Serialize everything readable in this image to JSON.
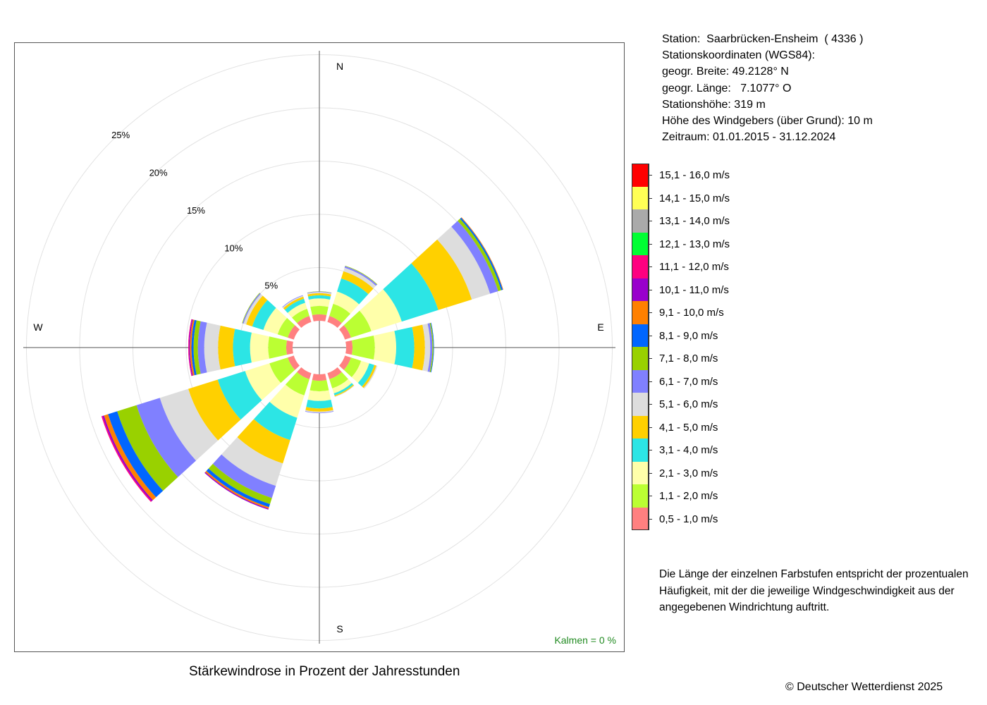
{
  "chart_data": {
    "type": "wind-rose",
    "title": "Stärkewindrose in Prozent der Jahresstunden",
    "calm_label": "Kalmen  =  0 %",
    "compass": {
      "n": "N",
      "e": "E",
      "s": "S",
      "w": "W"
    },
    "radial_ticks": [
      {
        "value": 5,
        "label": "5%"
      },
      {
        "value": 10,
        "label": "10%"
      },
      {
        "value": 15,
        "label": "15%"
      },
      {
        "value": 20,
        "label": "20%"
      },
      {
        "value": 25,
        "label": "25%"
      }
    ],
    "directions_deg": [
      0,
      30,
      60,
      90,
      120,
      150,
      180,
      210,
      240,
      270,
      300,
      330
    ],
    "speed_classes": [
      {
        "label": "0,5 - 1,0 m/s",
        "color": "#FF8080"
      },
      {
        "label": "1,1 - 2,0 m/s",
        "color": "#BBFF33"
      },
      {
        "label": "2,1 - 3,0 m/s",
        "color": "#FFFFAA"
      },
      {
        "label": "3,1 - 4,0 m/s",
        "color": "#2CE5E5"
      },
      {
        "label": "4,1 - 5,0 m/s",
        "color": "#FFD000"
      },
      {
        "label": "5,1 - 6,0 m/s",
        "color": "#DDDDDD"
      },
      {
        "label": "6,1 - 7,0 m/s",
        "color": "#8080FF"
      },
      {
        "label": "7,1 - 8,0 m/s",
        "color": "#99D100"
      },
      {
        "label": "8,1 - 9,0 m/s",
        "color": "#0066FF"
      },
      {
        "label": "9,1 - 10,0 m/s",
        "color": "#FF8000"
      },
      {
        "label": "10,1 - 11,0 m/s",
        "color": "#9900CC"
      },
      {
        "label": "11,1 - 12,0 m/s",
        "color": "#FF0080"
      },
      {
        "label": "12,1 - 13,0 m/s",
        "color": "#00FF33"
      },
      {
        "label": "13,1 - 14,0 m/s",
        "color": "#AAAAAA"
      },
      {
        "label": "14,1 - 15,0 m/s",
        "color": "#FFFF55"
      },
      {
        "label": "15,1 - 16,0 m/s",
        "color": "#FF0000"
      }
    ],
    "frequencies_percent": [
      {
        "direction": 0,
        "classes": [
          0.6,
          0.8,
          0.7,
          0.3,
          0.2,
          0.1,
          0.05,
          0.02
        ]
      },
      {
        "direction": 30,
        "classes": [
          0.6,
          1.2,
          1.2,
          1.3,
          0.7,
          0.35,
          0.15,
          0.05
        ]
      },
      {
        "direction": 60,
        "classes": [
          0.6,
          2.0,
          3.0,
          3.6,
          3.3,
          1.8,
          0.8,
          0.3,
          0.15,
          0.05
        ]
      },
      {
        "direction": 90,
        "classes": [
          0.6,
          2.1,
          2.0,
          1.7,
          1.0,
          0.5,
          0.2,
          0.1,
          0.05
        ]
      },
      {
        "direction": 120,
        "classes": [
          0.6,
          1.0,
          0.8,
          0.5,
          0.2,
          0.1
        ]
      },
      {
        "direction": 150,
        "classes": [
          0.6,
          0.9,
          0.5,
          0.2,
          0.1,
          0.05
        ]
      },
      {
        "direction": 180,
        "classes": [
          0.6,
          1.0,
          0.9,
          0.7,
          0.3,
          0.1,
          0.05
        ]
      },
      {
        "direction": 210,
        "classes": [
          0.6,
          1.6,
          2.2,
          2.2,
          2.3,
          2.2,
          1.2,
          0.6,
          0.3,
          0.15,
          0.1
        ]
      },
      {
        "direction": 240,
        "classes": [
          0.6,
          1.8,
          2.4,
          2.7,
          2.9,
          2.8,
          2.3,
          1.9,
          0.9,
          0.4,
          0.15,
          0.1
        ]
      },
      {
        "direction": 270,
        "classes": [
          0.6,
          1.7,
          1.7,
          1.6,
          1.4,
          1.3,
          0.6,
          0.4,
          0.2,
          0.15,
          0.1,
          0.05
        ]
      },
      {
        "direction": 300,
        "classes": [
          0.6,
          1.0,
          1.4,
          1.1,
          0.6,
          0.25,
          0.1,
          0.05
        ]
      },
      {
        "direction": 330,
        "classes": [
          0.6,
          0.7,
          0.6,
          0.4,
          0.2,
          0.1,
          0.05
        ]
      }
    ]
  },
  "station": {
    "line1": "Station:  Saarbrücken-Ensheim  ( 4336 )",
    "line2": "Stationskoordinaten (WGS84):",
    "line3": "geogr. Breite: 49.2128° N",
    "line4": "geogr. Länge:   7.1077° O",
    "line5": "Stationshöhe: 319 m",
    "line6": "Höhe des Windgebers (über Grund): 10 m",
    "line7": "Zeitraum: 01.01.2015 - 31.12.2024"
  },
  "note": "Die Länge der einzelnen Farbstufen entspricht der prozentualen Häufigkeit, mit der die jeweilige Windgeschwindigkeit aus der angegebenen Windrichtung auftritt.",
  "copyright": "© Deutscher Wetterdienst  2025"
}
